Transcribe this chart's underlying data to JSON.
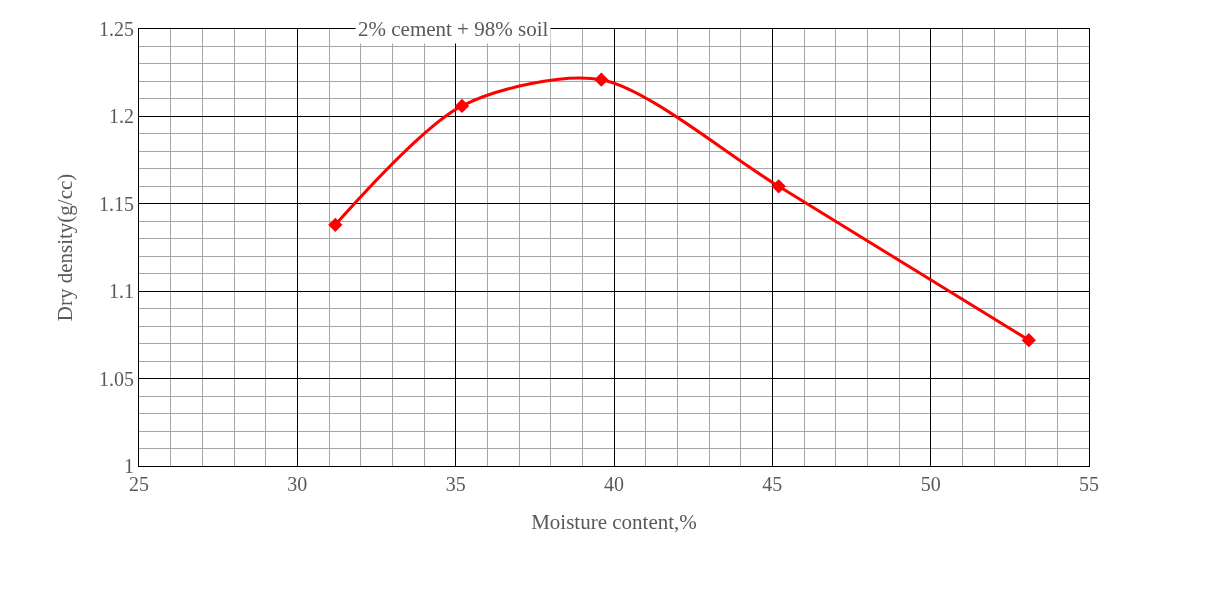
{
  "chart_data": {
    "type": "line",
    "title": "2% cement + 98% soil",
    "xlabel": "Moisture content,%",
    "ylabel": "Dry density(g/cc)",
    "x": [
      31.2,
      35.2,
      39.6,
      45.2,
      53.1
    ],
    "series": [
      {
        "color": "#ff0000",
        "values": [
          1.138,
          1.206,
          1.221,
          1.16,
          1.072
        ]
      }
    ],
    "xlim": [
      25,
      55
    ],
    "xticks": [
      25,
      30,
      35,
      40,
      45,
      50,
      55
    ],
    "ylim": [
      1,
      1.25
    ],
    "yticks": [
      {
        "value": 1,
        "label": "1"
      },
      1.05,
      {
        "value": 1.1,
        "label": "1.1"
      },
      1.15,
      {
        "value": 1.2,
        "label": "1.2"
      },
      1.25
    ],
    "grid": true,
    "marker": "diamond",
    "line_style": "solid"
  }
}
